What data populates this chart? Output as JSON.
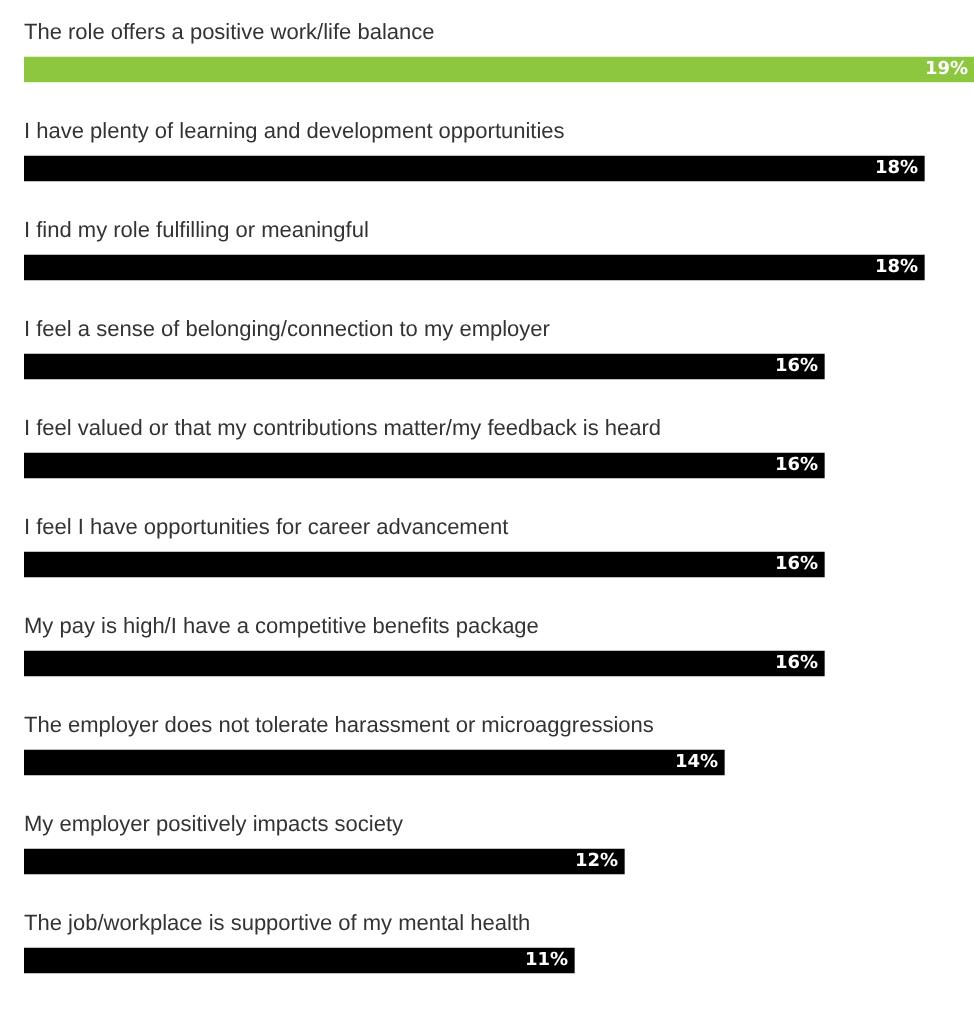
{
  "chart_data": {
    "type": "bar",
    "orientation": "horizontal",
    "categories": [
      "The role offers a positive work/life balance",
      "I have plenty of learning and development opportunities",
      "I find my role fulfilling or meaningful",
      "I feel a sense of belonging/connection to my employer",
      "I feel valued or that my contributions matter/my feedback is heard",
      "I feel I have opportunities for career advancement",
      "My pay is high/I have a competitive benefits package",
      "The employer does not tolerate harassment or microaggressions",
      "My employer positively impacts society",
      "The job/workplace is supportive of my mental health"
    ],
    "values": [
      19,
      18,
      18,
      16,
      16,
      16,
      16,
      14,
      12,
      11
    ],
    "colors": [
      "#8dc63f",
      "#000000",
      "#000000",
      "#000000",
      "#000000",
      "#000000",
      "#000000",
      "#000000",
      "#000000",
      "#000000"
    ],
    "value_labels": [
      "19%",
      "18%",
      "18%",
      "16%",
      "16%",
      "16%",
      "16%",
      "14%",
      "12%",
      "11%"
    ],
    "legend": false
  }
}
